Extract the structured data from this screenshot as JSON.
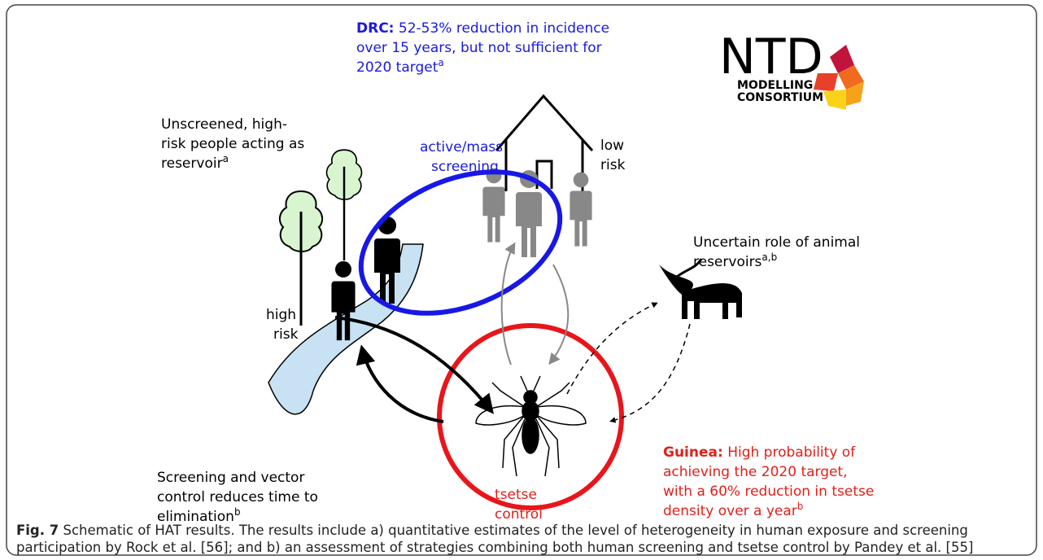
{
  "logo": {
    "title": "NTD",
    "line1": "MODELLING",
    "line2": "CONSORTIUM"
  },
  "drc": {
    "label": "DRC:",
    "lines": [
      "52-53% reduction in incidence",
      "over 15 years, but not sufficient for",
      "2020 target"
    ],
    "sup": "a"
  },
  "unscreened": {
    "lines": [
      "Unscreened, high-",
      "risk people acting as",
      "reservoir"
    ],
    "sup": "a"
  },
  "active_screening": {
    "lines": [
      "active/mass",
      "screening"
    ]
  },
  "low_risk": {
    "lines": [
      "low",
      "risk"
    ]
  },
  "high_risk": {
    "lines": [
      "high",
      "risk"
    ]
  },
  "animal": {
    "lines": [
      "Uncertain role of animal",
      "reservoirs"
    ],
    "sup": "a,b"
  },
  "screening_vector": {
    "lines": [
      "Screening and vector",
      "control reduces time to",
      "elimination"
    ],
    "sup": "b"
  },
  "tsetse_control": {
    "lines": [
      "tsetse",
      "control"
    ]
  },
  "guinea": {
    "label": "Guinea:",
    "lines": [
      "High probability of",
      "achieving the 2020 target,",
      "with a 60% reduction in tsetse",
      "density over a year"
    ],
    "sup": "b"
  },
  "caption": {
    "label": "Fig. 7",
    "lines": [
      "Schematic of HAT results. The results include a) quantitative estimates of the level of heterogeneity in human exposure and screening",
      "participation by Rock et al. [56]; and b) an assessment of strategies combining both human screening and tsetse control by Pandey et al. [55]"
    ]
  }
}
